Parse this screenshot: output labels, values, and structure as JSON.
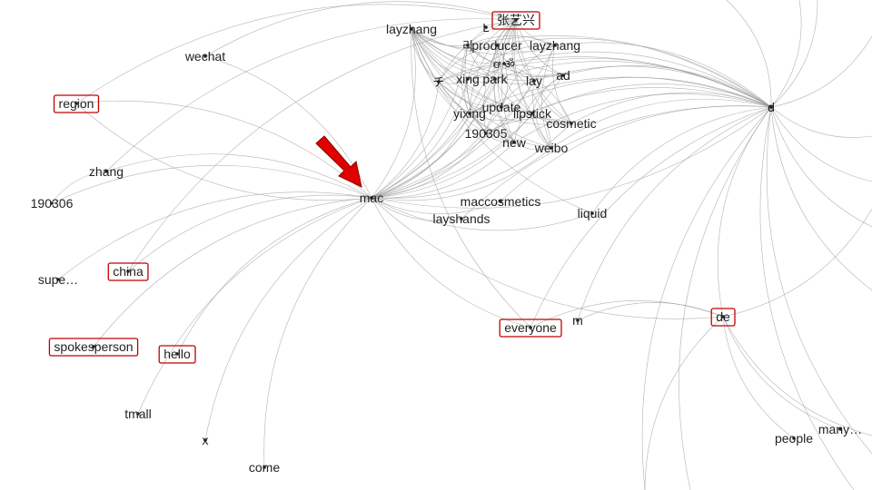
{
  "nodes": [
    {
      "id": "layzhang_top",
      "label": "layzhang"
    },
    {
      "id": "lay_partial",
      "label": "L"
    },
    {
      "id": "zhangyixing_cn",
      "label": "张艺兴",
      "highlighted": true
    },
    {
      "id": "producer",
      "label": "producer"
    },
    {
      "id": "layzhang2",
      "label": "layzhang"
    },
    {
      "id": "r_glyph",
      "label": "리"
    },
    {
      "id": "mini_glyphs",
      "label": "ơ   ॐ"
    },
    {
      "id": "ad",
      "label": "ad"
    },
    {
      "id": "chi",
      "label": "チ"
    },
    {
      "id": "xing",
      "label": "xing"
    },
    {
      "id": "park",
      "label": "park"
    },
    {
      "id": "lay",
      "label": "lay"
    },
    {
      "id": "update",
      "label": "update"
    },
    {
      "id": "yixing",
      "label": "yixing"
    },
    {
      "id": "lipstick",
      "label": "lipstick"
    },
    {
      "id": "cosmetic",
      "label": "cosmetic"
    },
    {
      "id": "n190305",
      "label": "190305"
    },
    {
      "id": "new",
      "label": "new"
    },
    {
      "id": "weibo",
      "label": "weibo"
    },
    {
      "id": "maccosmetics",
      "label": "maccosmetics"
    },
    {
      "id": "layshands",
      "label": "layshands"
    },
    {
      "id": "liquid",
      "label": "liquid"
    },
    {
      "id": "wechat",
      "label": "wechat"
    },
    {
      "id": "region",
      "label": "region",
      "highlighted": true
    },
    {
      "id": "zhang",
      "label": "zhang"
    },
    {
      "id": "n190306",
      "label": "190306"
    },
    {
      "id": "mac",
      "label": "mac",
      "pointed": true
    },
    {
      "id": "supe",
      "label": "supe…"
    },
    {
      "id": "china",
      "label": "china",
      "highlighted": true
    },
    {
      "id": "spokesperson",
      "label": "spokesperson",
      "highlighted": true
    },
    {
      "id": "hello",
      "label": "hello",
      "highlighted": true
    },
    {
      "id": "tmall",
      "label": "tmall"
    },
    {
      "id": "x",
      "label": "x"
    },
    {
      "id": "come",
      "label": "come"
    },
    {
      "id": "everyone",
      "label": "everyone",
      "highlighted": true
    },
    {
      "id": "m",
      "label": "m"
    },
    {
      "id": "de",
      "label": "de",
      "highlighted": true
    },
    {
      "id": "d",
      "label": "d"
    },
    {
      "id": "people",
      "label": "people"
    },
    {
      "id": "many",
      "label": "many…"
    }
  ],
  "colors": {
    "edge": "#9a9a9a",
    "label": "#222222",
    "highlight_box": "#c00000",
    "arrow": "#e00000",
    "background": "#ffffff"
  }
}
